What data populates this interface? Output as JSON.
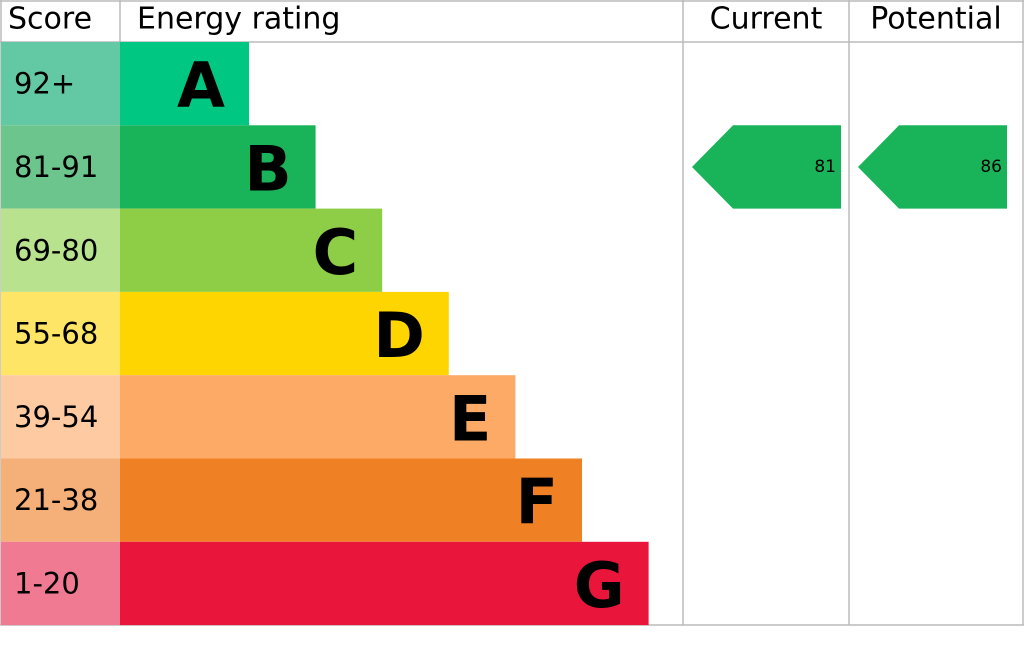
{
  "header": {
    "score": "Score",
    "rating": "Energy rating",
    "current": "Current",
    "potential": "Potential"
  },
  "bands": [
    {
      "score": "92+",
      "letter": "A",
      "color": "#00c781",
      "score_color": "#63c8a4"
    },
    {
      "score": "81-91",
      "letter": "B",
      "color": "#19b459",
      "score_color": "#6cc58c"
    },
    {
      "score": "69-80",
      "letter": "C",
      "color": "#8dce46",
      "score_color": "#b9e28e"
    },
    {
      "score": "55-68",
      "letter": "D",
      "color": "#ffd500",
      "score_color": "#ffe566"
    },
    {
      "score": "39-54",
      "letter": "E",
      "color": "#fcaa65",
      "score_color": "#fdcaa2"
    },
    {
      "score": "21-38",
      "letter": "F",
      "color": "#ef8023",
      "score_color": "#f5b07a"
    },
    {
      "score": "1-20",
      "letter": "G",
      "color": "#e9153b",
      "score_color": "#f07a91"
    }
  ],
  "current": {
    "value": 81,
    "color": "#19b459"
  },
  "potential": {
    "value": 86,
    "color": "#19b459"
  }
}
